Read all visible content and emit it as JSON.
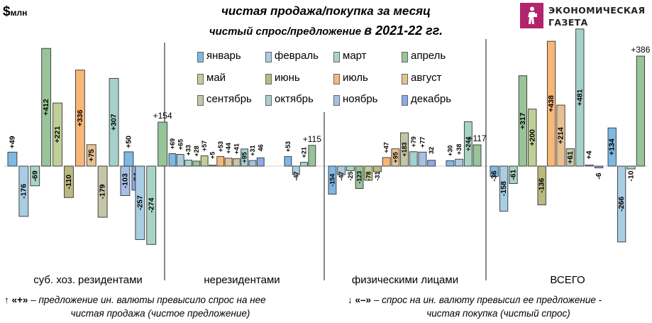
{
  "header": {
    "unit_symbol": "$",
    "unit_text": "млн",
    "title": "чистая продажа/покупка за месяц",
    "subtitle": "чистый спрос/предложение",
    "subtitle_years": "в 2021-22 гг."
  },
  "logo": {
    "line1": "ЭКОНОМИЧЕСКАЯ",
    "line2": "ГАЗЕТА",
    "brand_color": "#b2246b"
  },
  "legend": [
    {
      "label": "январь",
      "color": "#7fb8e2"
    },
    {
      "label": "февраль",
      "color": "#a9cde3"
    },
    {
      "label": "март",
      "color": "#a8d4c4"
    },
    {
      "label": "апрель",
      "color": "#98c498"
    },
    {
      "label": "май",
      "color": "#c0cf97"
    },
    {
      "label": "июнь",
      "color": "#bcb980"
    },
    {
      "label": "июль",
      "color": "#f7b777"
    },
    {
      "label": "август",
      "color": "#e8c190"
    },
    {
      "label": "сентябрь",
      "color": "#c4c6a6"
    },
    {
      "label": "октябрь",
      "color": "#a6d0cc"
    },
    {
      "label": "ноябрь",
      "color": "#a7bfe6"
    },
    {
      "label": "декабрь",
      "color": "#8ca9e8"
    }
  ],
  "chart_data": {
    "type": "bar",
    "title": "чистая продажа/покупка за месяц",
    "subtitle": "чистый спрос/предложение в 2021-22 гг.",
    "ylabel": "$млн",
    "groups": [
      {
        "label": "суб. хоз. резидентами",
        "series_2021": [
          49,
          -176,
          -69,
          412,
          221,
          -110,
          336,
          75,
          -179,
          307,
          -103,
          -84
        ],
        "series_2021_labels": [
          "+49",
          "-176",
          "-69",
          "+412",
          "+221",
          "-110",
          "+336",
          "+75",
          "-179",
          "+307",
          "-103",
          "-84"
        ],
        "series_2022": [
          50,
          -257,
          -274,
          154
        ],
        "series_2022_labels": [
          "+50",
          "-257",
          "-274",
          "+154"
        ]
      },
      {
        "label": "нерезидентами",
        "series_2021": [
          69,
          65,
          33,
          28,
          57,
          5,
          53,
          44,
          41,
          95,
          31,
          46
        ],
        "series_2021_labels": [
          "+69",
          "+65",
          "+33",
          "+28",
          "+57",
          "+5",
          "+53",
          "+44",
          "+41",
          "+95",
          "+31",
          "46"
        ],
        "series_2022": [
          53,
          -47,
          21,
          115
        ],
        "series_2022_labels": [
          "+53",
          "-47",
          "+21",
          "+115"
        ]
      },
      {
        "label": "физическими лицами",
        "series_2021": [
          -154,
          -47,
          -25,
          -123,
          -78,
          -31,
          47,
          95,
          183,
          79,
          77,
          32
        ],
        "series_2021_labels": [
          "-154",
          "-47",
          "-25",
          "-123",
          "-78",
          "-31",
          "+47",
          "+95",
          "+183",
          "+79",
          "+77",
          "32"
        ],
        "series_2022": [
          30,
          38,
          244,
          117
        ],
        "series_2022_labels": [
          "+30",
          "+38",
          "+244",
          "+117"
        ]
      },
      {
        "label": "ВСЕГО",
        "series_2021": [
          -36,
          -158,
          -61,
          317,
          200,
          -136,
          438,
          214,
          61,
          481,
          4,
          -6
        ],
        "series_2021_labels": [
          "-36",
          "-158",
          "-61",
          "+317",
          "+200",
          "-136",
          "+438",
          "+214",
          "+61",
          "+481",
          "+4",
          "-6"
        ],
        "series_2022": [
          134,
          -266,
          -10,
          386
        ],
        "series_2022_labels": [
          "+134",
          "-266",
          "-10",
          "+386"
        ]
      }
    ],
    "month_colors": [
      "#7fb8e2",
      "#a9cde3",
      "#a8d4c4",
      "#98c498",
      "#c0cf97",
      "#bcb980",
      "#f7b777",
      "#e8c190",
      "#c4c6a6",
      "#a6d0cc",
      "#a7bfe6",
      "#8ca9e8"
    ],
    "highlight_labels": [
      "+154",
      "+115",
      "+117",
      "+386"
    ],
    "grid": false,
    "legend_position": "top-center"
  },
  "notes": {
    "left_arrow": "↑",
    "left_sign": "«+»",
    "left_line1": "– предложение ин. валюты превысило спрос на нее",
    "left_line2": "чистая продажа (чистое предложение)",
    "right_arrow": "↓",
    "right_sign": "«–»",
    "right_line1": "– спрос на ин. валюту превысил ее предложение -",
    "right_line2": "чистая покупка (чистый спрос)"
  }
}
